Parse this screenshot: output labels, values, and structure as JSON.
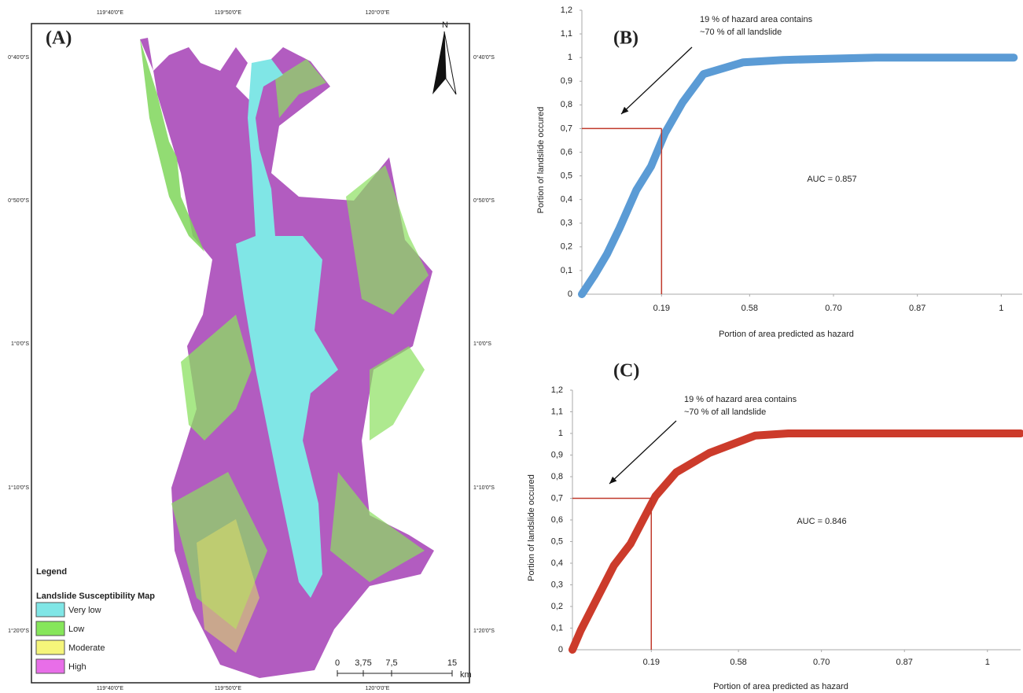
{
  "map": {
    "label": "(A)",
    "north": "N",
    "lon_labels": [
      "119°40'0\"E",
      "119°50'0\"E",
      "120°0'0\"E"
    ],
    "lat_labels": [
      "0°40'0\"S",
      "0°50'0\"S",
      "1°0'0\"S",
      "1°10'0\"S",
      "1°20'0\"S"
    ],
    "legend_title": "Legend",
    "legend_subtitle": "Landslide Susceptibility Map",
    "classes": [
      {
        "name": "Very low",
        "color": "#80e6e6"
      },
      {
        "name": "Low",
        "color": "#86e65a"
      },
      {
        "name": "Moderate",
        "color": "#f5f57a"
      },
      {
        "name": "High",
        "color": "#e86ee8"
      }
    ],
    "scale_labels": [
      "0",
      "3,75",
      "7,5",
      "15",
      "km"
    ]
  },
  "chart_data": [
    {
      "type": "line",
      "panel": "(B)",
      "xlabel": "Portion of area predicted as hazard",
      "ylabel": "Portion of landslide occured",
      "annotation": [
        "19 % of hazard area contains",
        "~70 % of all landslide"
      ],
      "auc": "AUC = 0.857",
      "color": "#5b9bd5",
      "x": [
        0,
        0.03,
        0.06,
        0.09,
        0.13,
        0.165,
        0.198,
        0.24,
        0.29,
        0.385,
        0.48,
        0.7,
        1.03
      ],
      "values": [
        0,
        0.08,
        0.17,
        0.28,
        0.44,
        0.54,
        0.68,
        0.81,
        0.93,
        0.98,
        0.99,
        1,
        1
      ],
      "threshold_x": 0.19,
      "threshold_y": 0.7,
      "xlim": [
        0,
        1.05
      ],
      "ylim": [
        0,
        1.2
      ],
      "xticks": [
        0.19,
        {
          "value": 0.4,
          "label": "0.58"
        },
        {
          "value": 0.6,
          "label": "0.70"
        },
        {
          "value": 0.8,
          "label": "0.87"
        },
        1
      ],
      "yticks": [
        0,
        {
          "value": 0.1,
          "label": "0,1"
        },
        {
          "value": 0.2,
          "label": "0,2"
        },
        {
          "value": 0.3,
          "label": "0,3"
        },
        {
          "value": 0.4,
          "label": "0,4"
        },
        {
          "value": 0.5,
          "label": "0,5"
        },
        {
          "value": 0.6,
          "label": "0,6"
        },
        {
          "value": 0.7,
          "label": "0,7"
        },
        {
          "value": 0.8,
          "label": "0,8"
        },
        {
          "value": 0.9,
          "label": "0,9"
        },
        1,
        {
          "value": 1.1,
          "label": "1,1"
        },
        {
          "value": 1.2,
          "label": "1,2"
        }
      ]
    },
    {
      "type": "line",
      "panel": "(C)",
      "xlabel": "Portion of area predicted as hazard",
      "ylabel": "Portion of landslide occured",
      "annotation": [
        "19 % of hazard area contains",
        "~70 % of all landslide"
      ],
      "auc": "AUC = 0.846",
      "color": "#cc3b2b",
      "x": [
        0,
        0.02,
        0.06,
        0.1,
        0.14,
        0.17,
        0.2,
        0.25,
        0.33,
        0.44,
        0.52,
        0.8,
        1.08
      ],
      "values": [
        0,
        0.09,
        0.24,
        0.39,
        0.49,
        0.6,
        0.71,
        0.82,
        0.91,
        0.99,
        1,
        1,
        1
      ],
      "threshold_x": 0.19,
      "threshold_y": 0.7,
      "xlim": [
        0,
        1.08
      ],
      "ylim": [
        0,
        1.2
      ],
      "xticks": [
        0.19,
        {
          "value": 0.4,
          "label": "0.58"
        },
        {
          "value": 0.6,
          "label": "0.70"
        },
        {
          "value": 0.8,
          "label": "0.87"
        },
        1
      ],
      "yticks": [
        0,
        {
          "value": 0.1,
          "label": "0,1"
        },
        {
          "value": 0.2,
          "label": "0,2"
        },
        {
          "value": 0.3,
          "label": "0,3"
        },
        {
          "value": 0.4,
          "label": "0,4"
        },
        {
          "value": 0.5,
          "label": "0,5"
        },
        {
          "value": 0.6,
          "label": "0,6"
        },
        {
          "value": 0.7,
          "label": "0,7"
        },
        {
          "value": 0.8,
          "label": "0,8"
        },
        {
          "value": 0.9,
          "label": "0,9"
        },
        1,
        {
          "value": 1.1,
          "label": "1,1"
        },
        {
          "value": 1.2,
          "label": "1,2"
        }
      ]
    }
  ]
}
